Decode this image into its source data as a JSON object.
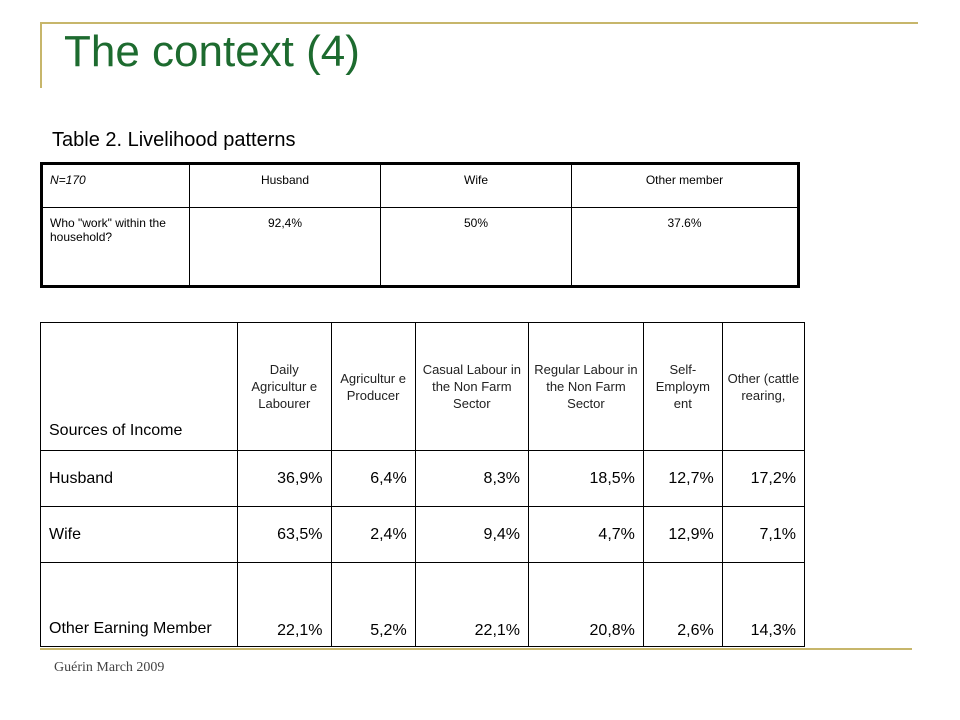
{
  "slide": {
    "title": "The context (4)",
    "subtitle": "Table 2. Livelihood patterns",
    "footer": "Guérin March 2009"
  },
  "table1": {
    "header": [
      "N=170",
      "Husband",
      "Wife",
      "Other member"
    ],
    "row": [
      "Who \"work\" within the household?",
      "92,4%",
      "50%",
      "37.6%"
    ]
  },
  "table2": {
    "header": [
      "Sources of Income",
      "Daily Agricultur e Labourer",
      "Agricultur e Producer",
      "Casual Labour in the Non Farm Sector",
      "Regular Labour in the Non Farm Sector",
      "Self- Employm ent",
      "Other (cattle rearing,"
    ],
    "rows": [
      [
        "Husband",
        "36,9%",
        "6,4%",
        "8,3%",
        "18,5%",
        "12,7%",
        "17,2%"
      ],
      [
        "Wife",
        "63,5%",
        "2,4%",
        "9,4%",
        "4,7%",
        "12,9%",
        "7,1%"
      ],
      [
        "Other Earning Member",
        "22,1%",
        "5,2%",
        "22,1%",
        "20,8%",
        "2,6%",
        "14,3%"
      ]
    ]
  }
}
